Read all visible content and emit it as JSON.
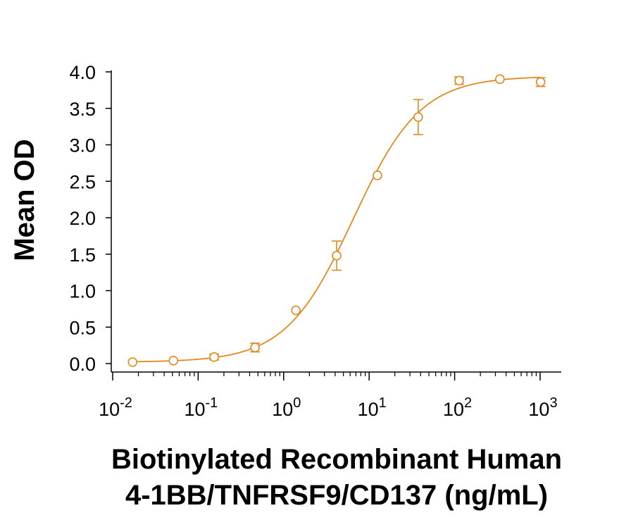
{
  "chart_data": {
    "type": "scatter",
    "title": "",
    "xlabel_lines": [
      "Biotinylated Recombinant Human",
      "4-1BB/TNFRSF9/CD137 (ng/mL)"
    ],
    "ylabel": "Mean OD",
    "xscale": "log",
    "xlim": [
      0.01,
      1000
    ],
    "ylim": [
      0.0,
      4.0
    ],
    "grid": false,
    "legend": "none",
    "color": "#E08A1E",
    "y_ticks": [
      "0.0",
      "0.5",
      "1.0",
      "1.5",
      "2.0",
      "2.5",
      "3.0",
      "3.5",
      "4.0"
    ],
    "y_tick_values": [
      0,
      0.5,
      1.0,
      1.5,
      2.0,
      2.5,
      3.0,
      3.5,
      4.0
    ],
    "x_ticks": [
      {
        "value": 0.01,
        "base": "10",
        "exp": "-2"
      },
      {
        "value": 0.1,
        "base": "10",
        "exp": "-1"
      },
      {
        "value": 1,
        "base": "10",
        "exp": "0"
      },
      {
        "value": 10,
        "base": "10",
        "exp": "1"
      },
      {
        "value": 100,
        "base": "10",
        "exp": "2"
      },
      {
        "value": 1000,
        "base": "10",
        "exp": "3"
      }
    ],
    "series": [
      {
        "points": [
          {
            "x": 0.0171,
            "y": 0.02,
            "err": 0.0
          },
          {
            "x": 0.0514,
            "y": 0.04,
            "err": 0.0
          },
          {
            "x": 0.154,
            "y": 0.09,
            "err": 0.04
          },
          {
            "x": 0.463,
            "y": 0.22,
            "err": 0.06
          },
          {
            "x": 1.39,
            "y": 0.73,
            "err": 0.0
          },
          {
            "x": 4.17,
            "y": 1.48,
            "err": 0.2
          },
          {
            "x": 12.5,
            "y": 2.58,
            "err": 0.0
          },
          {
            "x": 37.5,
            "y": 3.38,
            "err": 0.24
          },
          {
            "x": 113,
            "y": 3.88,
            "err": 0.05
          },
          {
            "x": 338,
            "y": 3.9,
            "err": 0.0
          },
          {
            "x": 1013,
            "y": 3.86,
            "err": 0.06
          }
        ],
        "fit": {
          "model": "4PL",
          "bottom": 0.02,
          "top": 3.94,
          "ec50": 6.5,
          "hill": 1.1
        }
      }
    ]
  }
}
